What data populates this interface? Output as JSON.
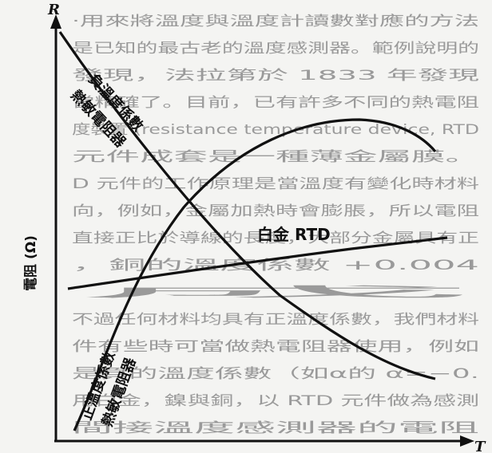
{
  "axes": {
    "x_label": "T",
    "y_label": "R",
    "y_title": "電阻 (Ω)"
  },
  "curves": {
    "ntc_label_line1": "負溫度係數",
    "ntc_label_line2": "熱敏電阻器",
    "rtd_label": "白金 RTD",
    "ptc_label_line1": "正溫度係數",
    "ptc_label_line2": "熱敏電阻器"
  },
  "background_text": [
    "‧用來將溫度與溫度計讀數對應的方法",
    "是已知的最古老的溫度感測器。範例說明的",
    "發現，法拉第於 1833 年發現",
    "當精確了。目前，已有許多不同的熱電阻",
    "度裝置 (resistance temperature device, RTD",
    "元件成套是一種薄金屬膜。",
    "D 元件的工作原理是當溫度有變化時材料",
    "向，例如，金屬加熱時會膨脹，所以電阻",
    "直接正比於導線的長度，大部分金屬具有正",
    "，銅的溫度係數 +0.004",
    "成",
    "不過任何材料均具有正溫度係數，我們材料",
    "件有些時可當做熱電阻器使用，例如",
    "是負的溫度係數（如α的 α=−0.",
    "用白金，鎳與銅，以 RTD 元件做為感測",
    "間接溫度感測器的電阻"
  ]
}
